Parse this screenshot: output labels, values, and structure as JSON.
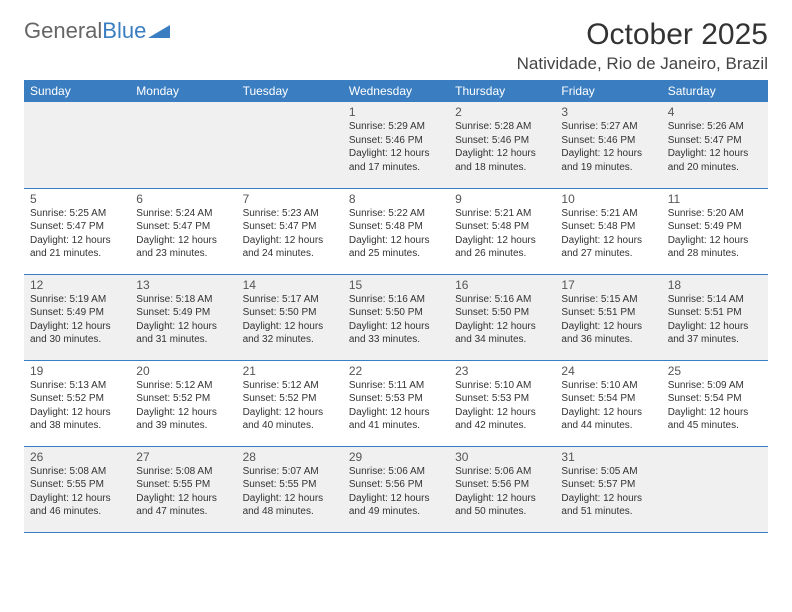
{
  "logo": {
    "text1": "General",
    "text2": "Blue"
  },
  "title": "October 2025",
  "location": "Natividade, Rio de Janeiro, Brazil",
  "colors": {
    "header_bg": "#3a7ec1",
    "header_text": "#ffffff",
    "alt_row_bg": "#f0f0f0",
    "border": "#3a7ec1",
    "text": "#333333",
    "logo_gray": "#666666",
    "logo_blue": "#3a7ec1"
  },
  "dayHeaders": [
    "Sunday",
    "Monday",
    "Tuesday",
    "Wednesday",
    "Thursday",
    "Friday",
    "Saturday"
  ],
  "weeks": [
    [
      null,
      null,
      null,
      {
        "n": "1",
        "sr": "5:29 AM",
        "ss": "5:46 PM",
        "dl": "12 hours and 17 minutes."
      },
      {
        "n": "2",
        "sr": "5:28 AM",
        "ss": "5:46 PM",
        "dl": "12 hours and 18 minutes."
      },
      {
        "n": "3",
        "sr": "5:27 AM",
        "ss": "5:46 PM",
        "dl": "12 hours and 19 minutes."
      },
      {
        "n": "4",
        "sr": "5:26 AM",
        "ss": "5:47 PM",
        "dl": "12 hours and 20 minutes."
      }
    ],
    [
      {
        "n": "5",
        "sr": "5:25 AM",
        "ss": "5:47 PM",
        "dl": "12 hours and 21 minutes."
      },
      {
        "n": "6",
        "sr": "5:24 AM",
        "ss": "5:47 PM",
        "dl": "12 hours and 23 minutes."
      },
      {
        "n": "7",
        "sr": "5:23 AM",
        "ss": "5:47 PM",
        "dl": "12 hours and 24 minutes."
      },
      {
        "n": "8",
        "sr": "5:22 AM",
        "ss": "5:48 PM",
        "dl": "12 hours and 25 minutes."
      },
      {
        "n": "9",
        "sr": "5:21 AM",
        "ss": "5:48 PM",
        "dl": "12 hours and 26 minutes."
      },
      {
        "n": "10",
        "sr": "5:21 AM",
        "ss": "5:48 PM",
        "dl": "12 hours and 27 minutes."
      },
      {
        "n": "11",
        "sr": "5:20 AM",
        "ss": "5:49 PM",
        "dl": "12 hours and 28 minutes."
      }
    ],
    [
      {
        "n": "12",
        "sr": "5:19 AM",
        "ss": "5:49 PM",
        "dl": "12 hours and 30 minutes."
      },
      {
        "n": "13",
        "sr": "5:18 AM",
        "ss": "5:49 PM",
        "dl": "12 hours and 31 minutes."
      },
      {
        "n": "14",
        "sr": "5:17 AM",
        "ss": "5:50 PM",
        "dl": "12 hours and 32 minutes."
      },
      {
        "n": "15",
        "sr": "5:16 AM",
        "ss": "5:50 PM",
        "dl": "12 hours and 33 minutes."
      },
      {
        "n": "16",
        "sr": "5:16 AM",
        "ss": "5:50 PM",
        "dl": "12 hours and 34 minutes."
      },
      {
        "n": "17",
        "sr": "5:15 AM",
        "ss": "5:51 PM",
        "dl": "12 hours and 36 minutes."
      },
      {
        "n": "18",
        "sr": "5:14 AM",
        "ss": "5:51 PM",
        "dl": "12 hours and 37 minutes."
      }
    ],
    [
      {
        "n": "19",
        "sr": "5:13 AM",
        "ss": "5:52 PM",
        "dl": "12 hours and 38 minutes."
      },
      {
        "n": "20",
        "sr": "5:12 AM",
        "ss": "5:52 PM",
        "dl": "12 hours and 39 minutes."
      },
      {
        "n": "21",
        "sr": "5:12 AM",
        "ss": "5:52 PM",
        "dl": "12 hours and 40 minutes."
      },
      {
        "n": "22",
        "sr": "5:11 AM",
        "ss": "5:53 PM",
        "dl": "12 hours and 41 minutes."
      },
      {
        "n": "23",
        "sr": "5:10 AM",
        "ss": "5:53 PM",
        "dl": "12 hours and 42 minutes."
      },
      {
        "n": "24",
        "sr": "5:10 AM",
        "ss": "5:54 PM",
        "dl": "12 hours and 44 minutes."
      },
      {
        "n": "25",
        "sr": "5:09 AM",
        "ss": "5:54 PM",
        "dl": "12 hours and 45 minutes."
      }
    ],
    [
      {
        "n": "26",
        "sr": "5:08 AM",
        "ss": "5:55 PM",
        "dl": "12 hours and 46 minutes."
      },
      {
        "n": "27",
        "sr": "5:08 AM",
        "ss": "5:55 PM",
        "dl": "12 hours and 47 minutes."
      },
      {
        "n": "28",
        "sr": "5:07 AM",
        "ss": "5:55 PM",
        "dl": "12 hours and 48 minutes."
      },
      {
        "n": "29",
        "sr": "5:06 AM",
        "ss": "5:56 PM",
        "dl": "12 hours and 49 minutes."
      },
      {
        "n": "30",
        "sr": "5:06 AM",
        "ss": "5:56 PM",
        "dl": "12 hours and 50 minutes."
      },
      {
        "n": "31",
        "sr": "5:05 AM",
        "ss": "5:57 PM",
        "dl": "12 hours and 51 minutes."
      },
      null
    ]
  ],
  "labels": {
    "sunrise": "Sunrise:",
    "sunset": "Sunset:",
    "daylight": "Daylight:"
  }
}
